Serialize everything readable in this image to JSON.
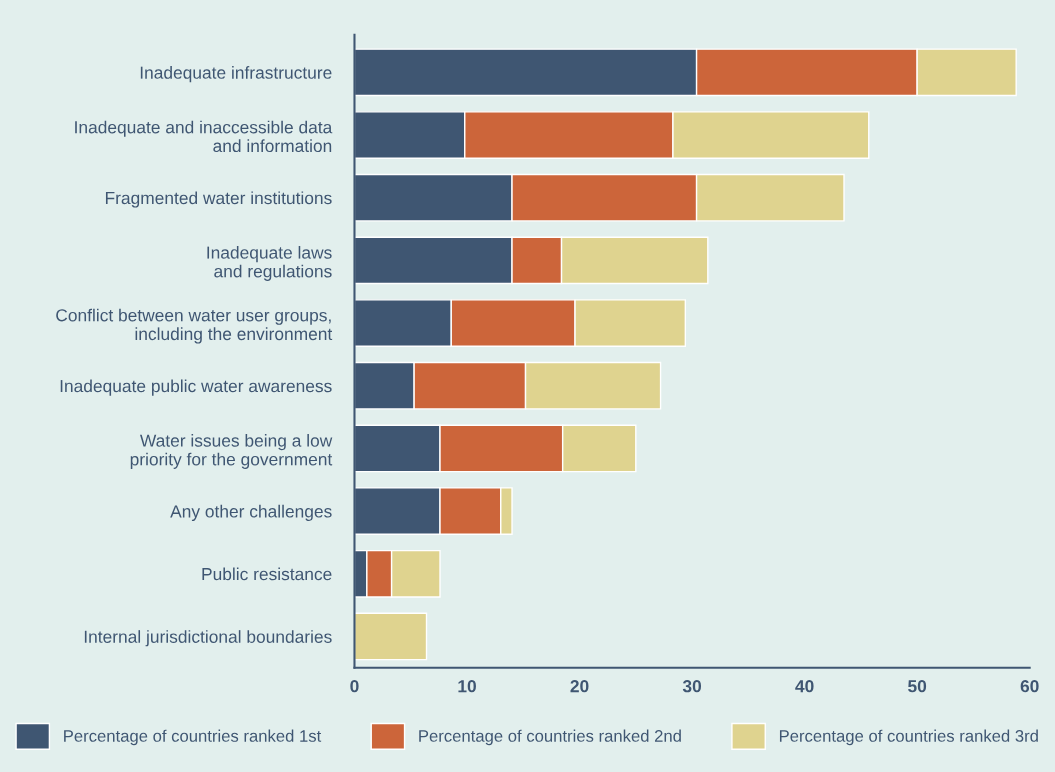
{
  "chart_data": {
    "type": "bar",
    "orientation": "horizontal",
    "stacked": true,
    "categories": [
      "Inadequate infrastructure",
      "Inadequate and inaccessible data\nand information",
      "Fragmented water institutions",
      "Inadequate laws\nand regulations",
      "Conflict between water user groups,\nincluding the environment",
      "Inadequate public water awareness",
      "Water issues being a low\npriority for the government",
      "Any other challenges",
      "Public resistance",
      "Internal jurisdictional boundaries"
    ],
    "series": [
      {
        "name": "Percentage of countries ranked 1st",
        "color": "#3f5672",
        "values": [
          30.4,
          9.8,
          14.0,
          14.0,
          8.6,
          5.3,
          7.6,
          7.6,
          1.1,
          0
        ]
      },
      {
        "name": "Percentage of countries ranked 2nd",
        "color": "#cc653a",
        "values": [
          19.6,
          18.5,
          16.4,
          4.4,
          11.0,
          9.9,
          10.9,
          5.4,
          2.2,
          0
        ]
      },
      {
        "name": "Percentage of countries ranked 3rd",
        "color": "#dfd38f",
        "values": [
          8.8,
          17.4,
          13.1,
          13.0,
          9.8,
          12.0,
          6.5,
          1.0,
          4.3,
          6.4
        ]
      }
    ],
    "xlim": [
      0,
      60
    ],
    "xticks": [
      0,
      10,
      20,
      30,
      40,
      50,
      60
    ],
    "grid": false,
    "legend": "bottom"
  }
}
